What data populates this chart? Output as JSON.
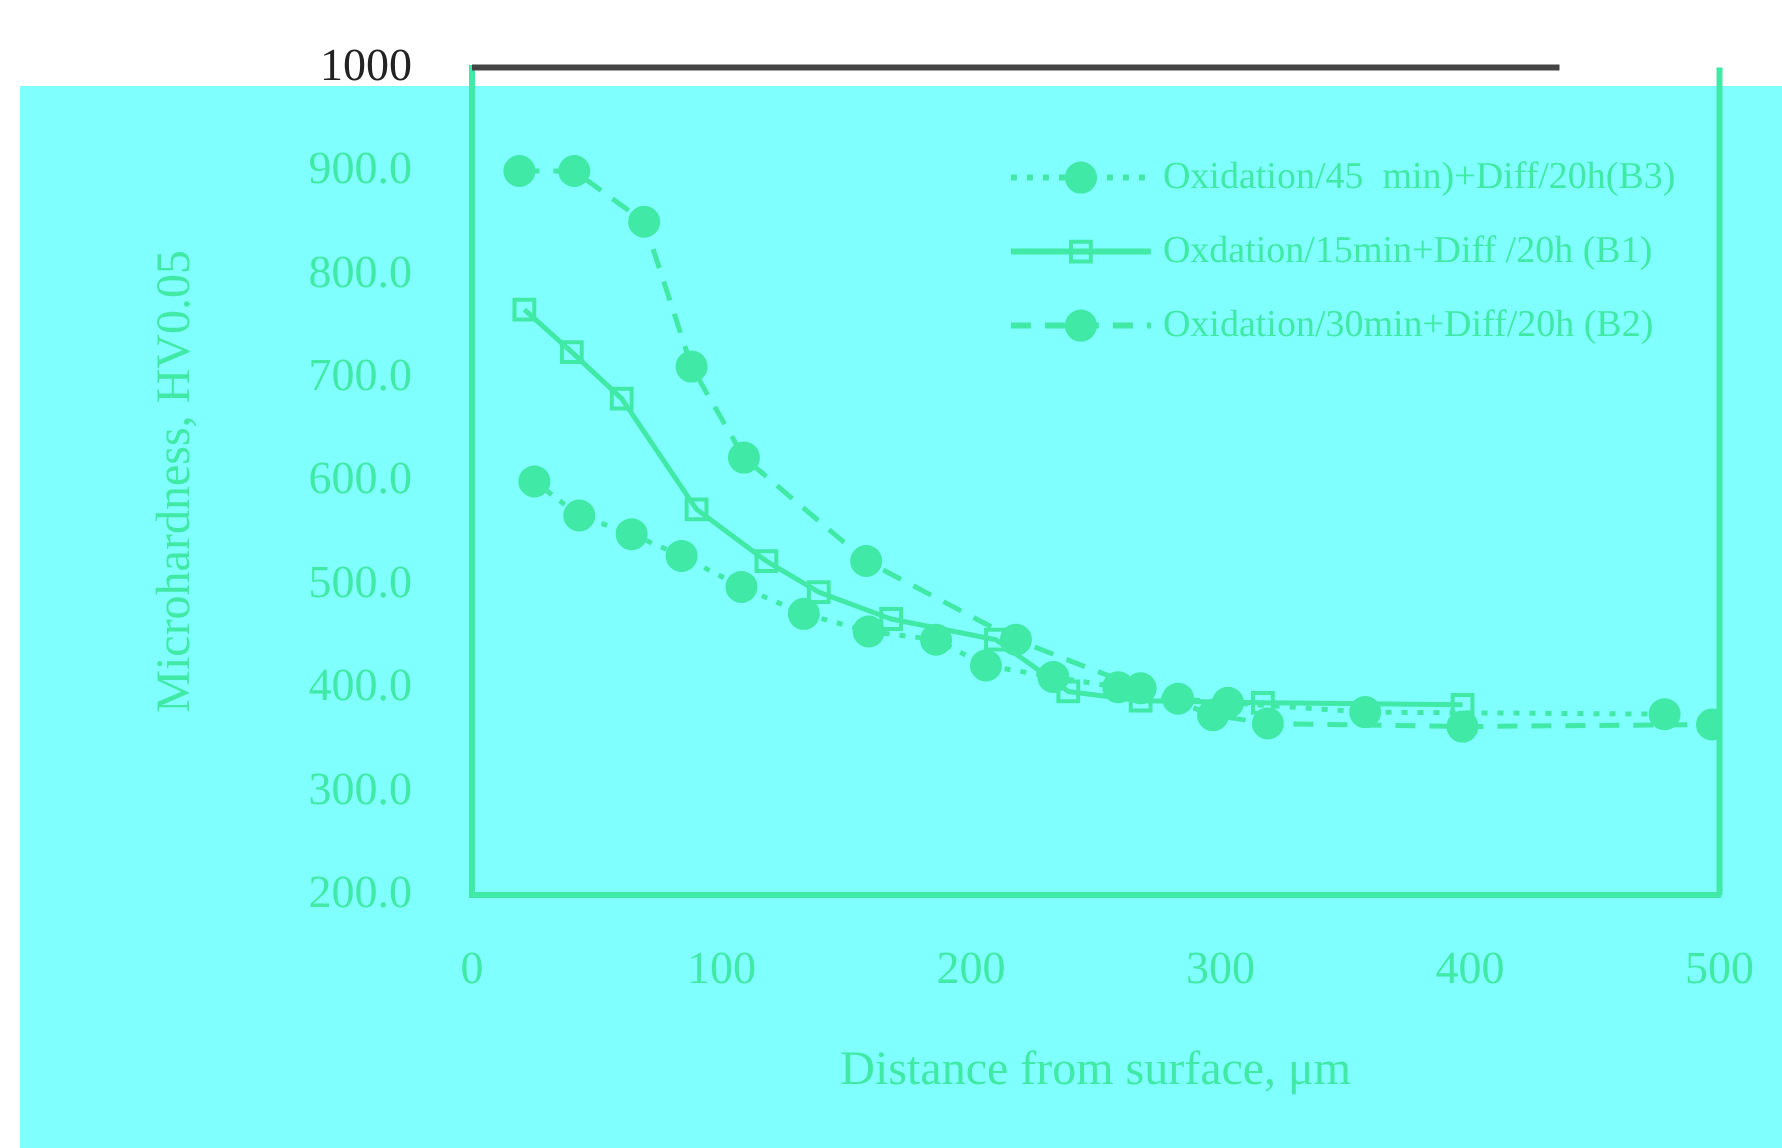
{
  "chart_data": {
    "type": "line",
    "xlabel": "Distance from surface, μm",
    "ylabel": "Microhardness, HV0.05",
    "xlim": [
      0,
      500
    ],
    "xticks": [
      0,
      100,
      200,
      300,
      400,
      500
    ],
    "ylim": [
      200,
      1000
    ],
    "yticks": [
      {
        "value": 200,
        "label": "200.0"
      },
      {
        "value": 300,
        "label": "300.0"
      },
      {
        "value": 400,
        "label": "400.0"
      },
      {
        "value": 500,
        "label": "500.0"
      },
      {
        "value": 600,
        "label": "600.0"
      },
      {
        "value": 700,
        "label": "700.0"
      },
      {
        "value": 800,
        "label": "800.0"
      },
      {
        "value": 900,
        "label": "900.0"
      },
      1000
    ],
    "grid": false,
    "legend": "top right",
    "series": [
      {
        "name": "Oxidation/45  min)+Diff/20h(B3)",
        "color": "#40eaa6",
        "marker": "circle",
        "line_style": "dotted",
        "x": [
          25,
          43,
          64,
          84,
          108,
          133,
          159,
          186,
          206,
          233,
          259,
          283,
          303,
          358,
          478
        ],
        "values": [
          600,
          567,
          549,
          528,
          498,
          472,
          455,
          447,
          422,
          411,
          401,
          390,
          386,
          377,
          375
        ]
      },
      {
        "name": "Oxdation/15min+Diff /20h (B1)",
        "color": "#40eaa6",
        "marker": "square",
        "line_style": "solid",
        "x": [
          21,
          40,
          60,
          90,
          118,
          139,
          168,
          210,
          239,
          268,
          317,
          397
        ],
        "values": [
          766,
          725,
          680,
          573,
          523,
          493,
          467,
          447,
          397,
          388,
          386,
          384
        ]
      },
      {
        "name": "Oxidation/30min+Diff/20h (B2)",
        "color": "#40eaa6",
        "marker": "circle",
        "line_style": "dashed",
        "x": [
          19,
          41,
          69,
          88,
          109,
          158,
          218,
          268,
          297,
          319,
          397,
          497
        ],
        "values": [
          900,
          900,
          851,
          711,
          623,
          523,
          447,
          400,
          374,
          366,
          363,
          365
        ]
      }
    ]
  }
}
